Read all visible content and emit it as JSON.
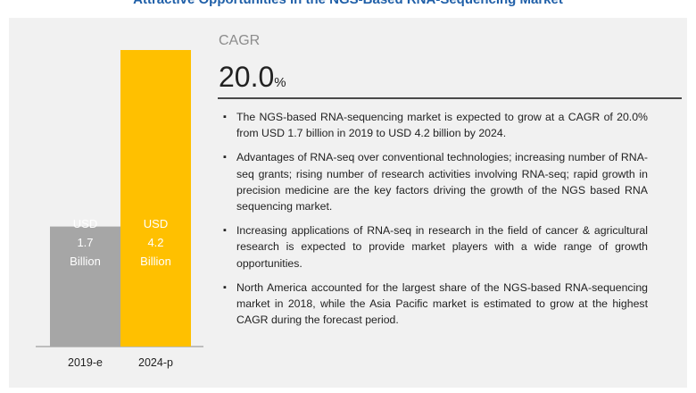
{
  "title": "Attractive Opportunities in the NGS-Based RNA-Sequencing Market",
  "cagr": {
    "label": "CAGR",
    "value": "20.0",
    "unit": "%"
  },
  "chart_data": {
    "type": "bar",
    "categories": [
      "2019-e",
      "2024-p"
    ],
    "values": [
      1.7,
      4.2
    ],
    "bar_labels": [
      [
        "USD",
        "1.7",
        "Billion"
      ],
      [
        "USD",
        "4.2",
        "Billion"
      ]
    ],
    "colors": [
      "#a6a6a6",
      "#ffc000"
    ],
    "ylim": [
      0,
      4.2
    ],
    "grid": false,
    "title": "",
    "xlabel": "",
    "ylabel": ""
  },
  "bullets": [
    "The NGS-based RNA-sequencing market is expected to grow at a CAGR of 20.0% from USD 1.7 billion in 2019 to USD 4.2 billion by 2024.",
    "Advantages of RNA-seq over conventional technologies; increasing number of RNA-seq grants; rising number of research activities involving RNA-seq; rapid growth in precision medicine are the key factors driving the growth of the NGS based RNA sequencing market.",
    "Increasing applications of RNA-seq in research in the field of cancer & agricultural research is expected to provide market players with a wide range of growth opportunities.",
    "North America accounted for the largest share of the NGS-based RNA-sequencing market in 2018, while the Asia Pacific market is estimated to grow at the highest CAGR during the forecast period."
  ],
  "bullet_glyph": "▪"
}
